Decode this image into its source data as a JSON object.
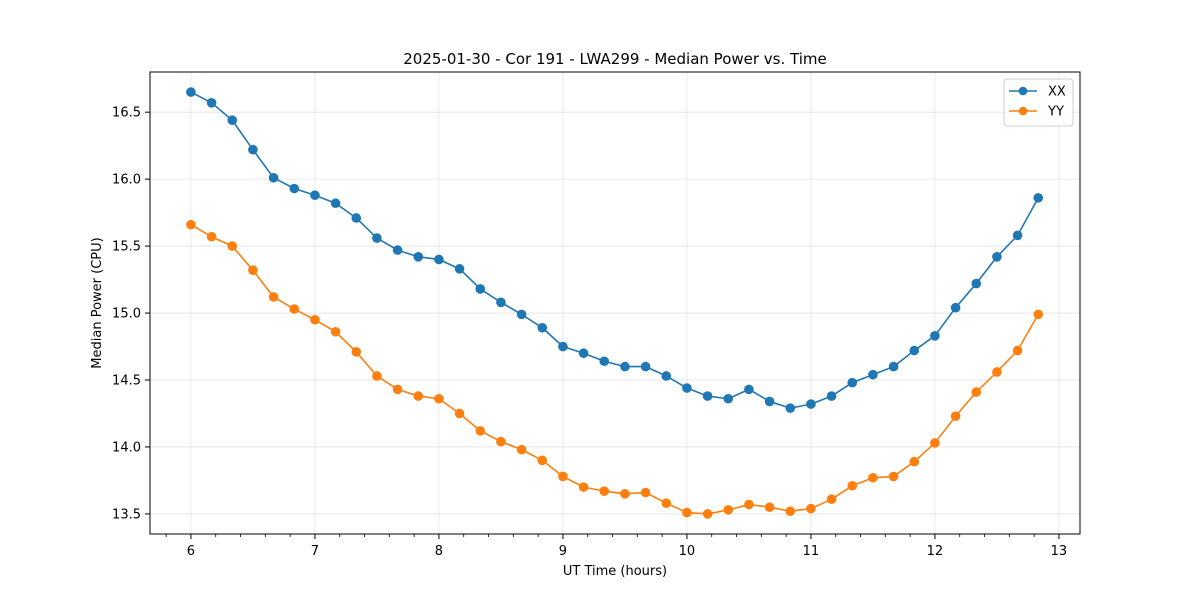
{
  "chart_data": {
    "type": "line",
    "title": "2025-01-30 - Cor 191 - LWA299 - Median Power vs. Time",
    "xlabel": "UT Time (hours)",
    "ylabel": "Median Power (CPU)",
    "xlim": [
      5.67,
      13.17
    ],
    "ylim": [
      13.35,
      16.8
    ],
    "xticks": [
      6,
      7,
      8,
      9,
      10,
      11,
      12,
      13
    ],
    "xtick_labels": [
      "6",
      "7",
      "8",
      "9",
      "10",
      "11",
      "12",
      "13"
    ],
    "yticks": [
      13.5,
      14.0,
      14.5,
      15.0,
      15.5,
      16.0,
      16.5
    ],
    "ytick_labels": [
      "13.5",
      "14.0",
      "14.5",
      "15.0",
      "15.5",
      "16.0",
      "16.5"
    ],
    "grid": true,
    "legend_position": "top-right",
    "x": [
      6.0,
      6.1667,
      6.3333,
      6.5,
      6.6667,
      6.8333,
      7.0,
      7.1667,
      7.3333,
      7.5,
      7.6667,
      7.8333,
      8.0,
      8.1667,
      8.3333,
      8.5,
      8.6667,
      8.8333,
      9.0,
      9.1667,
      9.3333,
      9.5,
      9.6667,
      9.8333,
      10.0,
      10.1667,
      10.3333,
      10.5,
      10.6667,
      10.8333,
      11.0,
      11.1667,
      11.3333,
      11.5,
      11.6667,
      11.8333,
      12.0,
      12.1667,
      12.3333,
      12.5,
      12.6667,
      12.8333
    ],
    "series": [
      {
        "name": "XX",
        "color": "#1f77b4",
        "values": [
          16.65,
          16.57,
          16.44,
          16.22,
          16.01,
          15.93,
          15.88,
          15.82,
          15.71,
          15.56,
          15.47,
          15.42,
          15.4,
          15.33,
          15.18,
          15.08,
          14.99,
          14.89,
          14.75,
          14.7,
          14.64,
          14.6,
          14.6,
          14.53,
          14.44,
          14.38,
          14.36,
          14.43,
          14.34,
          14.29,
          14.32,
          14.38,
          14.48,
          14.54,
          14.6,
          14.72,
          14.83,
          15.04,
          15.22,
          15.42,
          15.58,
          15.86
        ]
      },
      {
        "name": "YY",
        "color": "#ff7f0e",
        "values": [
          15.66,
          15.57,
          15.5,
          15.32,
          15.12,
          15.03,
          14.95,
          14.86,
          14.71,
          14.53,
          14.43,
          14.38,
          14.36,
          14.25,
          14.12,
          14.04,
          13.98,
          13.9,
          13.78,
          13.7,
          13.67,
          13.65,
          13.66,
          13.58,
          13.51,
          13.5,
          13.53,
          13.57,
          13.55,
          13.52,
          13.54,
          13.61,
          13.71,
          13.77,
          13.78,
          13.89,
          14.03,
          14.23,
          14.41,
          14.56,
          14.72,
          14.99
        ]
      }
    ]
  }
}
